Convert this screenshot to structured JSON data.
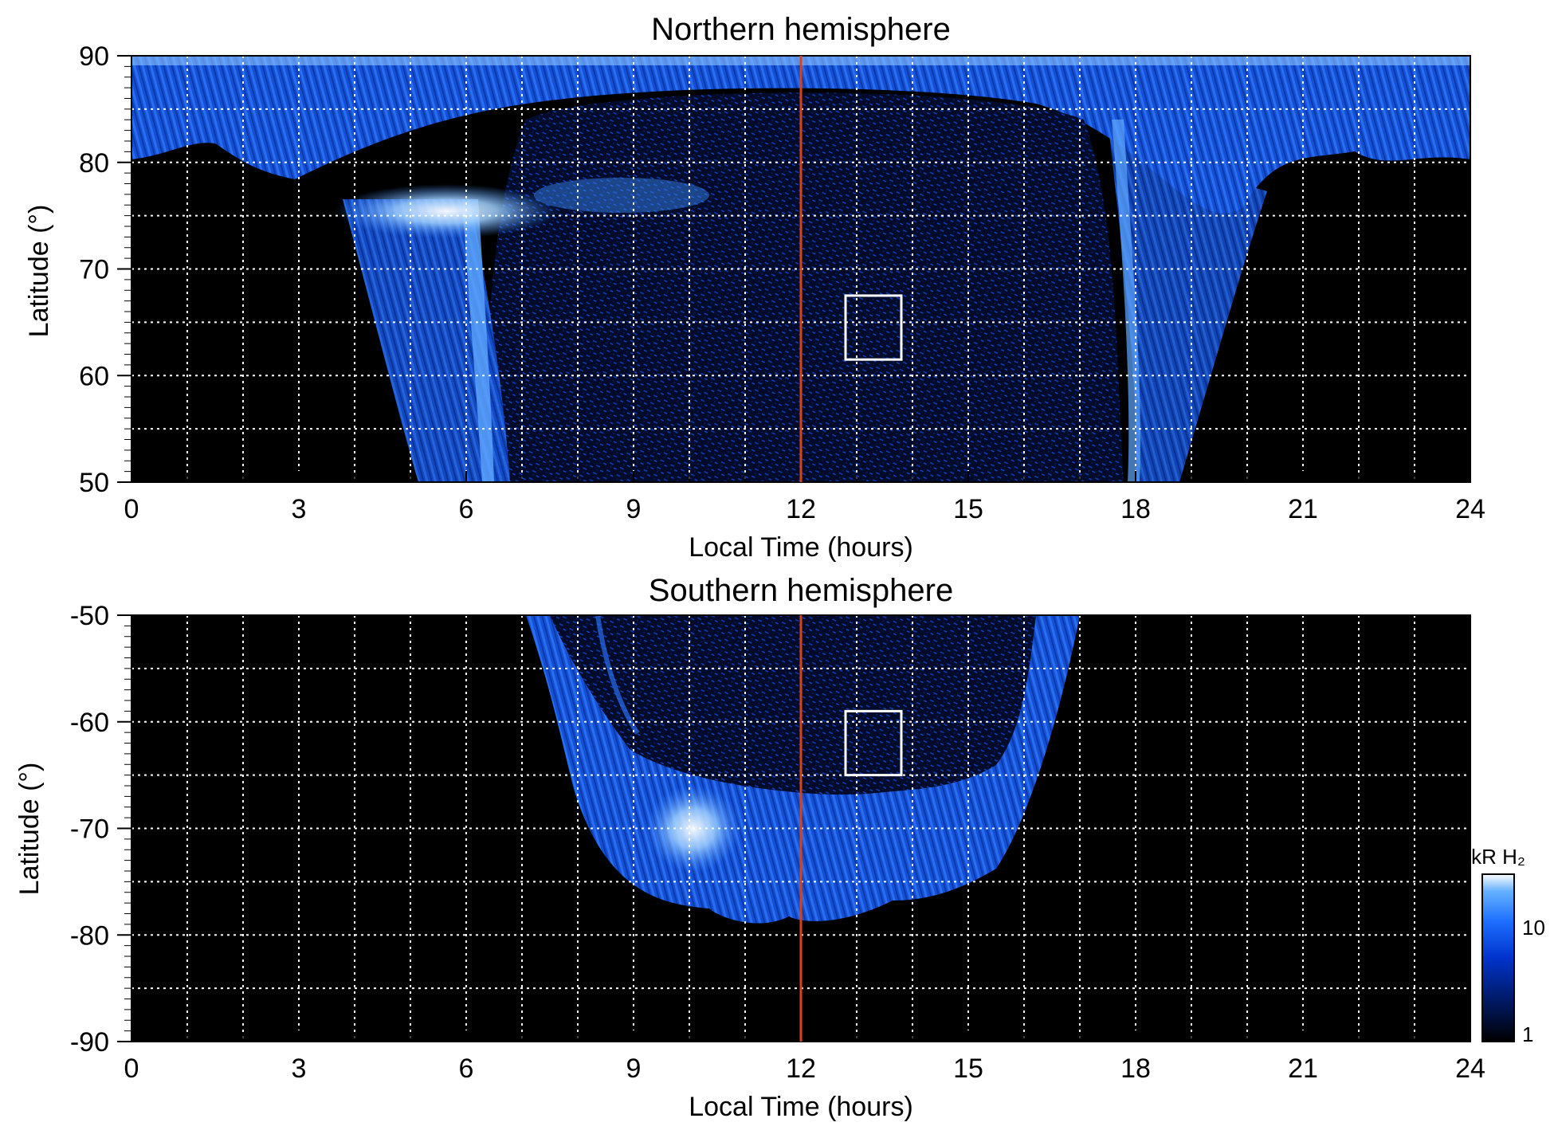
{
  "chart_data": [
    {
      "type": "heatmap",
      "title": "Northern hemisphere",
      "xlabel": "Local Time (hours)",
      "ylabel": "Latitude (°)",
      "xlim": [
        0,
        24
      ],
      "ylim": [
        50,
        90
      ],
      "x_ticks": [
        "0",
        "3",
        "6",
        "9",
        "12",
        "15",
        "18",
        "21",
        "24"
      ],
      "y_ticks": [
        "50",
        "60",
        "70",
        "80",
        "90"
      ],
      "grid": true,
      "reference_line": {
        "x": 12,
        "color": "#d84315"
      },
      "highlight_box": {
        "x": [
          12.8,
          13.8
        ],
        "y": [
          61.5,
          67.5
        ]
      },
      "emission_regions": [
        {
          "lt": [
            0,
            24
          ],
          "lat": [
            80,
            90
          ],
          "level": "bright"
        },
        {
          "lt": [
            3.5,
            7.5
          ],
          "lat": [
            70,
            78
          ],
          "level": "brightest"
        },
        {
          "lt": [
            4.8,
            6.8
          ],
          "lat": [
            50,
            72
          ],
          "level": "medium"
        },
        {
          "lt": [
            17.2,
            19.0
          ],
          "lat": [
            50,
            80
          ],
          "level": "medium"
        },
        {
          "lt": [
            7,
            17
          ],
          "lat": [
            50,
            88
          ],
          "level": "faint"
        }
      ]
    },
    {
      "type": "heatmap",
      "title": "Southern hemisphere",
      "xlabel": "Local Time (hours)",
      "ylabel": "Latitude (°)",
      "xlim": [
        0,
        24
      ],
      "ylim": [
        -90,
        -50
      ],
      "x_ticks": [
        "0",
        "3",
        "6",
        "9",
        "12",
        "15",
        "18",
        "21",
        "24"
      ],
      "y_ticks": [
        "-90",
        "-80",
        "-70",
        "-60",
        "-50"
      ],
      "grid": true,
      "reference_line": {
        "x": 12,
        "color": "#d84315"
      },
      "highlight_box": {
        "x": [
          12.8,
          13.8
        ],
        "y": [
          -65,
          -59
        ]
      },
      "emission_regions": [
        {
          "lt": [
            7.2,
            17.0
          ],
          "lat": [
            -78,
            -50
          ],
          "level": "medium"
        },
        {
          "lt": [
            9.0,
            11.5
          ],
          "lat": [
            -76,
            -67
          ],
          "level": "brightest"
        },
        {
          "lt": [
            8.5,
            15.5
          ],
          "lat": [
            -67,
            -50
          ],
          "level": "faint"
        }
      ],
      "colorbar": {
        "label": "kR H₂",
        "scale": "log",
        "range": [
          1,
          30
        ],
        "tick_labels": [
          "1",
          "10"
        ],
        "colors": [
          "#000000",
          "#001a66",
          "#0033cc",
          "#1e6fff",
          "#66b2ff",
          "#ffffff"
        ]
      }
    }
  ]
}
